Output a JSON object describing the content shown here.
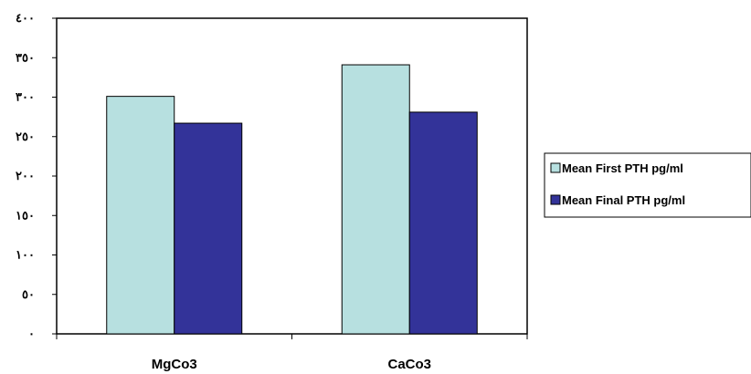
{
  "chart_data": {
    "type": "bar",
    "categories": [
      "MgCo3",
      "CaCo3"
    ],
    "series": [
      {
        "name": "Mean First PTH pg/ml",
        "values": [
          301,
          341
        ],
        "color": "#b7e0e0"
      },
      {
        "name": "Mean Final PTH pg/ml",
        "values": [
          267,
          281
        ],
        "color": "#333399"
      }
    ],
    "ylim": [
      0,
      400
    ],
    "y_ticks": [
      0,
      50,
      100,
      150,
      200,
      250,
      300,
      350,
      400
    ],
    "y_tick_labels": [
      "٠",
      "٥٠",
      "١٠٠",
      "١٥٠",
      "٢٠٠",
      "٢٥٠",
      "٣٠٠",
      "٣٥٠",
      "٤٠٠"
    ],
    "grid": false,
    "legend_position": "right",
    "title": "",
    "xlabel": "",
    "ylabel": ""
  }
}
